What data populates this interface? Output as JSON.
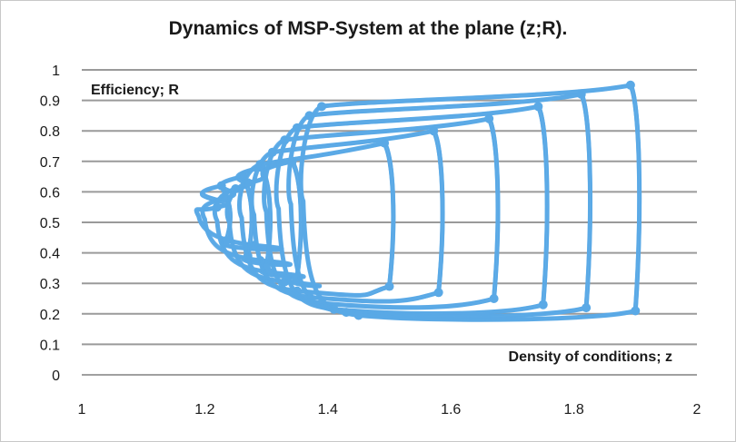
{
  "chart_data": {
    "type": "line",
    "title": "Dynamics of MSP-System at the plane (z;R).",
    "xlabel": "Density of conditions; z",
    "ylabel": "Efficiency; R",
    "xlim": [
      1,
      2
    ],
    "ylim": [
      0,
      1
    ],
    "x_ticks": [
      "1",
      "1.2",
      "1.4",
      "1.6",
      "1.8",
      "2"
    ],
    "y_ticks": [
      "0",
      "0.1",
      "0.2",
      "0.3",
      "0.4",
      "0.5",
      "0.6",
      "0.7",
      "0.8",
      "0.9",
      "1"
    ],
    "grid": "horizontal",
    "series_color": "#5aa9e6",
    "loops": [
      {
        "left": 1.19,
        "right": 1.235,
        "top": 0.62,
        "bottom": 0.42
      },
      {
        "left": 1.2,
        "right": 1.27,
        "top": 0.65,
        "bottom": 0.37
      },
      {
        "left": 1.22,
        "right": 1.3,
        "top": 0.68,
        "bottom": 0.33
      },
      {
        "left": 1.24,
        "right": 1.35,
        "top": 0.7,
        "bottom": 0.3
      },
      {
        "left": 1.26,
        "right": 1.5,
        "top": 0.76,
        "bottom": 0.27
      },
      {
        "left": 1.28,
        "right": 1.58,
        "top": 0.8,
        "bottom": 0.25
      },
      {
        "left": 1.3,
        "right": 1.67,
        "top": 0.84,
        "bottom": 0.23
      },
      {
        "left": 1.32,
        "right": 1.75,
        "top": 0.88,
        "bottom": 0.21
      },
      {
        "left": 1.34,
        "right": 1.82,
        "top": 0.92,
        "bottom": 0.2
      },
      {
        "left": 1.36,
        "right": 1.9,
        "top": 0.95,
        "bottom": 0.19
      }
    ]
  }
}
